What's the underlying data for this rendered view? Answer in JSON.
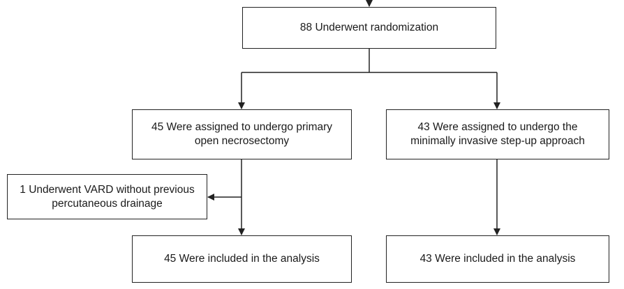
{
  "flowchart": {
    "randomization": "88 Underwent randomization",
    "open_arm": {
      "line1": "45 Were assigned to undergo primary",
      "line2": "open necrosectomy"
    },
    "stepup_arm": {
      "line1": "43 Were assigned to undergo the",
      "line2": "minimally invasive step-up approach"
    },
    "vard_note": {
      "line1": "1 Underwent VARD without previous",
      "line2": "percutaneous drainage"
    },
    "open_analysis": "45 Were included in the analysis",
    "stepup_analysis": "43 Were included in the analysis"
  }
}
